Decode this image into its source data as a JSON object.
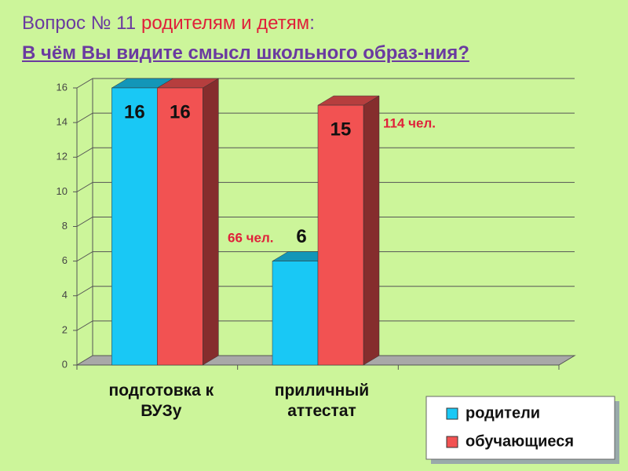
{
  "chart_data": {
    "type": "bar3d",
    "title": [
      "Вопрос № 11",
      "родителям и детям",
      ":"
    ],
    "subtitle": "В чём Вы видите смысл школьного образ-ния?",
    "categories": [
      "подготовка к ВУЗу",
      "приличный аттестат",
      null
    ],
    "series": [
      {
        "name": "родители",
        "color": "#19c8f5",
        "values": [
          16,
          6,
          null
        ]
      },
      {
        "name": "обучающиеся",
        "color": "#f25252",
        "values": [
          16,
          15,
          null
        ]
      }
    ],
    "annotations": [
      "66 чел.",
      "114 чел."
    ],
    "ylim": [
      0,
      16
    ],
    "yticks": [
      0,
      2,
      4,
      6,
      8,
      10,
      12,
      14,
      16
    ],
    "grid": true,
    "legend": "bottom-right"
  }
}
